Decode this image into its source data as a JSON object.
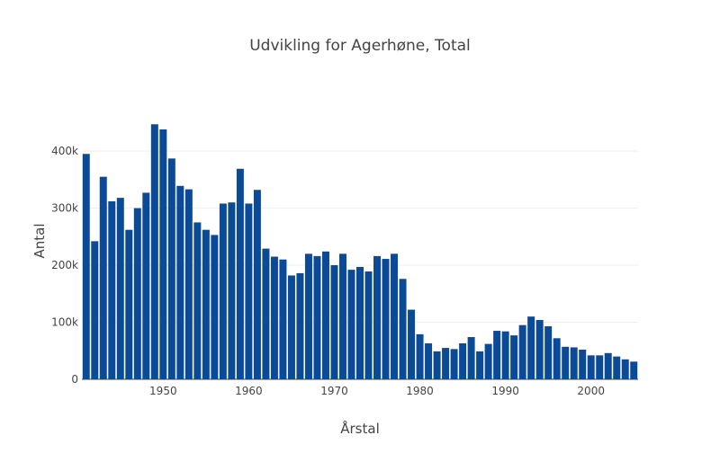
{
  "chart_data": {
    "type": "bar",
    "title": "Udvikling for Agerhøne, Total",
    "xlabel": "Årstal",
    "ylabel": "Antal",
    "bar_color": "#0b4a96",
    "xlim": [
      1940.5,
      2005.5
    ],
    "ylim": [
      0,
      460000
    ],
    "x_ticks": [
      1950,
      1960,
      1970,
      1980,
      1990,
      2000
    ],
    "y_ticks": [
      0,
      100000,
      200000,
      300000,
      400000
    ],
    "y_tick_labels": [
      "0",
      "100k",
      "200k",
      "300k",
      "400k"
    ],
    "gridlines": true,
    "x": [
      1941,
      1942,
      1943,
      1944,
      1945,
      1946,
      1947,
      1948,
      1949,
      1950,
      1951,
      1952,
      1953,
      1954,
      1955,
      1956,
      1957,
      1958,
      1959,
      1960,
      1961,
      1962,
      1963,
      1964,
      1965,
      1966,
      1967,
      1968,
      1969,
      1970,
      1971,
      1972,
      1973,
      1974,
      1975,
      1976,
      1977,
      1978,
      1979,
      1980,
      1981,
      1982,
      1983,
      1984,
      1985,
      1986,
      1987,
      1988,
      1989,
      1990,
      1991,
      1992,
      1993,
      1994,
      1995,
      1996,
      1997,
      1998,
      1999,
      2000,
      2001,
      2002,
      2003,
      2004,
      2005
    ],
    "values": [
      395000,
      242000,
      355000,
      312000,
      318000,
      262000,
      300000,
      327000,
      447000,
      438000,
      387000,
      339000,
      333000,
      275000,
      262000,
      253000,
      308000,
      310000,
      369000,
      308000,
      332000,
      229000,
      215000,
      210000,
      182000,
      186000,
      220000,
      216000,
      224000,
      200000,
      220000,
      192000,
      197000,
      189000,
      216000,
      211000,
      220000,
      176000,
      122000,
      79000,
      63000,
      49000,
      55000,
      53000,
      63000,
      74000,
      49000,
      62000,
      85000,
      84000,
      77000,
      95000,
      110000,
      104000,
      93000,
      72000,
      57000,
      56000,
      52000,
      42000,
      42000,
      46000,
      40000,
      35000,
      31000
    ]
  }
}
